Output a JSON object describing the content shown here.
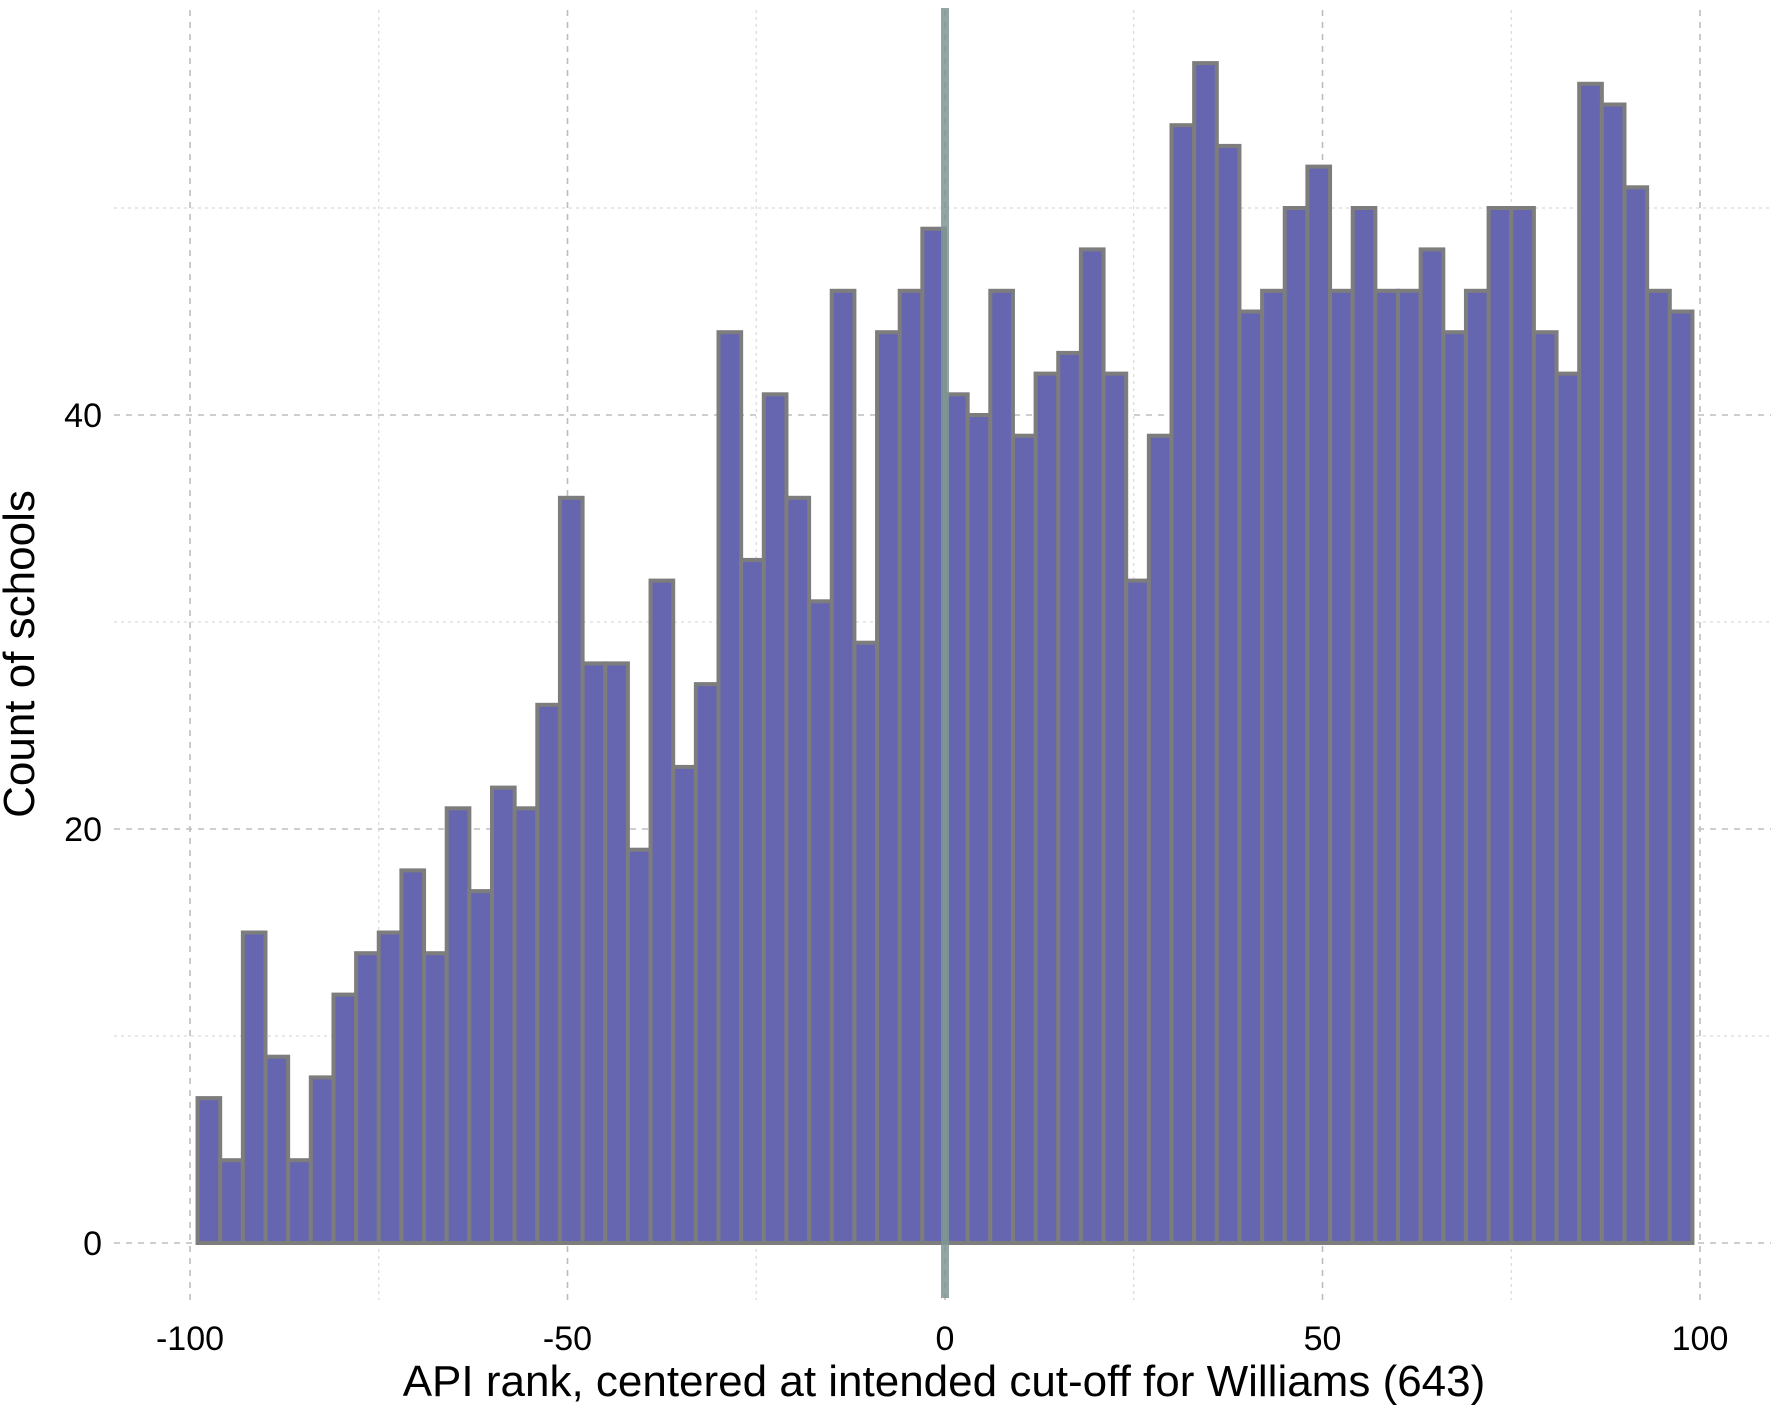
{
  "chart_data": {
    "type": "bar",
    "title": "",
    "xlabel": "API rank, centered at intended cut-off for Williams (643)",
    "ylabel": "Count of schools",
    "xlim": [
      -101,
      110
    ],
    "ylim": [
      -2.8,
      60
    ],
    "bin_width": 3,
    "bin_start": -99,
    "x_ticks": [
      -100,
      -50,
      0,
      50,
      100
    ],
    "x_tick_labels": [
      "-100",
      "-50",
      "0",
      "50",
      "100"
    ],
    "y_ticks": [
      0,
      20,
      40
    ],
    "y_tick_labels": [
      "0",
      "20",
      "40"
    ],
    "y_minor_ticks": [
      10,
      30,
      50
    ],
    "x_minor_ticks": [
      -75,
      -25,
      25,
      75
    ],
    "cutoff": 0,
    "values": [
      7,
      4,
      15,
      9,
      4,
      8,
      12,
      14,
      15,
      18,
      14,
      21,
      17,
      22,
      21,
      26,
      36,
      28,
      28,
      19,
      32,
      23,
      27,
      44,
      33,
      41,
      36,
      31,
      46,
      29,
      44,
      46,
      49,
      41,
      40,
      46,
      39,
      42,
      43,
      48,
      42,
      32,
      39,
      54,
      57,
      53,
      45,
      46,
      50,
      52,
      46,
      50,
      46,
      46,
      48,
      44,
      46,
      50,
      50,
      44,
      42,
      56,
      55,
      51,
      46,
      45
    ],
    "colors": {
      "bar_fill": "#6666b0",
      "bar_edge": "#7d7d7d",
      "cutoff_line": "#7f9696"
    }
  }
}
